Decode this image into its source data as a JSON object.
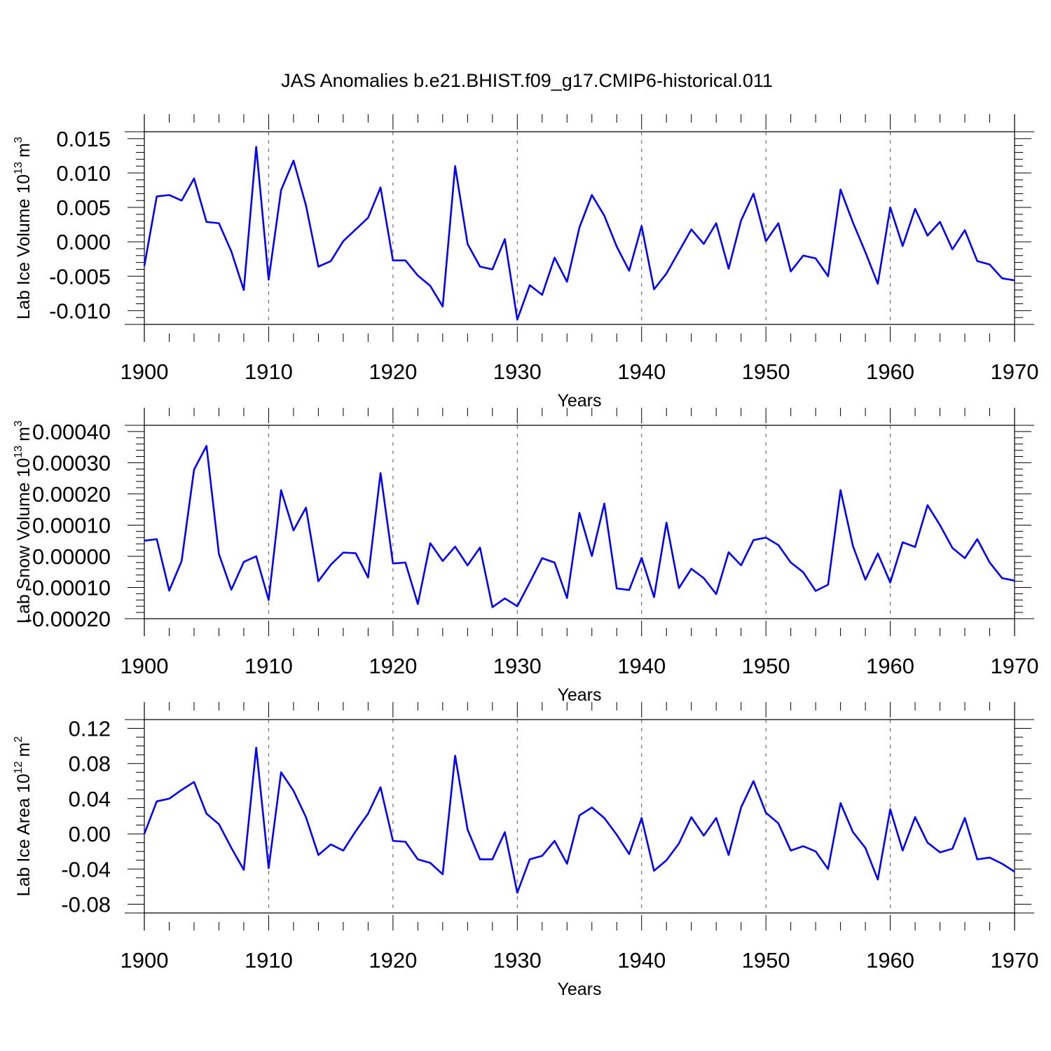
{
  "title": "JAS Anomalies b.e21.BHIST.f09_g17.CMIP6-historical.011",
  "colors": {
    "line": "#0000ff",
    "axis": "#000000",
    "grid": "#555555"
  },
  "chart_data": [
    {
      "type": "line",
      "name": "lab-ice-volume",
      "ylabel": "Lab Ice Volume 10",
      "ylabel_exp": "13",
      "ylabel_unit": "m",
      "ylabel_unit_exp": "3",
      "xlabel": "Years",
      "xlim": [
        1900,
        1970
      ],
      "ylim": [
        -0.012,
        0.016
      ],
      "yticks": [
        -0.01,
        -0.005,
        0.0,
        0.005,
        0.01,
        0.015
      ],
      "ytick_labels": [
        "-0.010",
        "-0.005",
        "0.000",
        "0.005",
        "0.010",
        "0.015"
      ],
      "yminor_step": 0.001,
      "xticks": [
        1900,
        1910,
        1920,
        1930,
        1940,
        1950,
        1960,
        1970
      ],
      "xtick_labels": [
        "1900",
        "1910",
        "1920",
        "1930",
        "1940",
        "1950",
        "1960",
        "1970"
      ],
      "vgrid": [
        1910,
        1920,
        1930,
        1940,
        1950,
        1960
      ],
      "x_start": 1900,
      "values": [
        -0.0035,
        0.0066,
        0.0068,
        0.006,
        0.0092,
        0.0029,
        0.0027,
        -0.0014,
        -0.007,
        0.0138,
        -0.0055,
        0.0075,
        0.0118,
        0.0053,
        -0.0036,
        -0.0028,
        0.0001,
        0.0018,
        0.0035,
        0.0079,
        -0.0027,
        -0.0027,
        -0.0049,
        -0.0064,
        -0.0094,
        0.011,
        -0.0003,
        -0.0036,
        -0.004,
        0.0004,
        -0.0113,
        -0.0063,
        -0.0077,
        -0.0023,
        -0.0058,
        0.0021,
        0.0068,
        0.0038,
        -0.0007,
        -0.0042,
        0.0023,
        -0.0069,
        -0.0046,
        -0.0014,
        0.0018,
        -0.0003,
        0.0027,
        -0.0039,
        0.0031,
        0.007,
        0.0001,
        0.0027,
        -0.0043,
        -0.002,
        -0.0024,
        -0.005,
        0.0076,
        0.0028,
        -0.0015,
        -0.0061,
        0.005,
        -0.0006,
        0.0048,
        0.0009,
        0.0029,
        -0.0011,
        0.0017,
        -0.0028,
        -0.0033,
        -0.0053,
        -0.0056
      ]
    },
    {
      "type": "line",
      "name": "lab-snow-volume",
      "ylabel": "Lab Snow Volume 10",
      "ylabel_exp": "13",
      "ylabel_unit": "m",
      "ylabel_unit_exp": "3",
      "xlabel": "Years",
      "xlim": [
        1900,
        1970
      ],
      "ylim": [
        -0.0002,
        0.00042
      ],
      "yticks": [
        -0.0002,
        -0.0001,
        0.0,
        0.0001,
        0.0002,
        0.0003,
        0.0004
      ],
      "ytick_labels": [
        "-0.00020",
        "-0.00010",
        "0.00000",
        "0.00010",
        "0.00020",
        "0.00030",
        "0.00040"
      ],
      "yminor_step": 2e-05,
      "xticks": [
        1900,
        1910,
        1920,
        1930,
        1940,
        1950,
        1960,
        1970
      ],
      "xtick_labels": [
        "1900",
        "1910",
        "1920",
        "1930",
        "1940",
        "1950",
        "1960",
        "1970"
      ],
      "vgrid": [
        1910,
        1920,
        1930,
        1940,
        1950,
        1960
      ],
      "x_start": 1900,
      "values": [
        5e-05,
        5.5e-05,
        -0.00011,
        -1.5e-05,
        0.000278,
        0.000354,
        7e-06,
        -0.000107,
        -1.8e-05,
        0.0,
        -0.00014,
        0.000212,
        8.3e-05,
        0.000156,
        -8e-05,
        -2.7e-05,
        1.2e-05,
        1e-05,
        -6.8e-05,
        0.000267,
        -2.3e-05,
        -2e-05,
        -0.000153,
        4.2e-05,
        -1.5e-05,
        3.1e-05,
        -2.9e-05,
        2.8e-05,
        -0.000163,
        -0.000135,
        -0.00016,
        -8.4e-05,
        -6e-06,
        -2e-05,
        -0.000134,
        0.000139,
        1e-06,
        0.000169,
        -0.000103,
        -0.000108,
        -5e-06,
        -0.000131,
        0.000108,
        -0.000102,
        -4e-05,
        -7e-05,
        -0.000121,
        1.3e-05,
        -2.9e-05,
        5.2e-05,
        6e-05,
        3.6e-05,
        -2e-05,
        -5.1e-05,
        -0.000111,
        -9.1e-05,
        0.000212,
        3.3e-05,
        -7.5e-05,
        9e-06,
        -8.4e-05,
        4.5e-05,
        3e-05,
        0.000164,
        0.0001,
        2.7e-05,
        -6e-06,
        5.5e-05,
        -2e-05,
        -7e-05,
        -7.8e-05
      ]
    },
    {
      "type": "line",
      "name": "lab-ice-area",
      "ylabel": "Lab Ice Area 10",
      "ylabel_exp": "12",
      "ylabel_unit": "m",
      "ylabel_unit_exp": "2",
      "xlabel": "Years",
      "xlim": [
        1900,
        1970
      ],
      "ylim": [
        -0.09,
        0.13
      ],
      "yticks": [
        -0.08,
        -0.04,
        0.0,
        0.04,
        0.08,
        0.12
      ],
      "ytick_labels": [
        "-0.08",
        "-0.04",
        "0.00",
        "0.04",
        "0.08",
        "0.12"
      ],
      "yminor_step": 0.01,
      "xticks": [
        1900,
        1910,
        1920,
        1930,
        1940,
        1950,
        1960,
        1970
      ],
      "xtick_labels": [
        "1900",
        "1910",
        "1920",
        "1930",
        "1940",
        "1950",
        "1960",
        "1970"
      ],
      "vgrid": [
        1910,
        1920,
        1930,
        1940,
        1950,
        1960
      ],
      "x_start": 1900,
      "values": [
        0.0,
        0.037,
        0.04,
        0.05,
        0.059,
        0.023,
        0.011,
        -0.016,
        -0.041,
        0.098,
        -0.039,
        0.07,
        0.049,
        0.019,
        -0.024,
        -0.012,
        -0.019,
        0.003,
        0.023,
        0.053,
        -0.008,
        -0.009,
        -0.029,
        -0.033,
        -0.046,
        0.089,
        0.005,
        -0.029,
        -0.029,
        0.002,
        -0.067,
        -0.029,
        -0.025,
        -0.008,
        -0.034,
        0.021,
        0.03,
        0.018,
        -0.001,
        -0.023,
        0.018,
        -0.042,
        -0.03,
        -0.011,
        0.019,
        -0.002,
        0.018,
        -0.024,
        0.03,
        0.06,
        0.024,
        0.012,
        -0.019,
        -0.014,
        -0.02,
        -0.04,
        0.035,
        0.002,
        -0.016,
        -0.052,
        0.028,
        -0.019,
        0.019,
        -0.01,
        -0.021,
        -0.017,
        0.018,
        -0.029,
        -0.027,
        -0.034,
        -0.043
      ]
    }
  ]
}
